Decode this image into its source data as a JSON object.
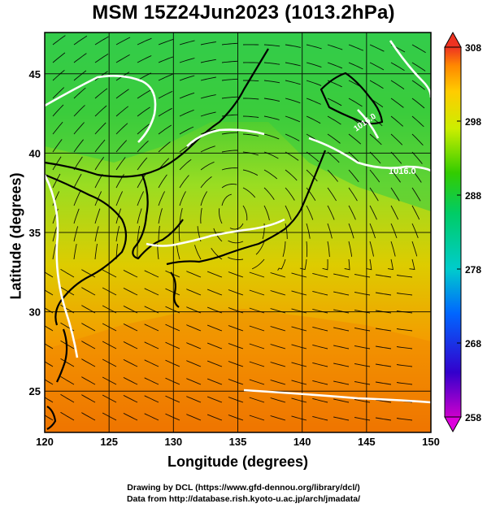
{
  "title": "MSM 15Z24Jun2023 (1013.2hPa)",
  "x_axis": {
    "label": "Longitude (degrees)",
    "ticks": [
      "120",
      "125",
      "130",
      "135",
      "140",
      "145",
      "150"
    ],
    "range": [
      120,
      150
    ]
  },
  "y_axis": {
    "label": "Latitude  (degrees)",
    "ticks": [
      "25",
      "30",
      "35",
      "40",
      "45"
    ],
    "range": [
      22.4,
      47.6
    ]
  },
  "colorbar": {
    "ticks": [
      "258",
      "268",
      "278",
      "288",
      "298",
      "308"
    ],
    "range": [
      258,
      308
    ],
    "colors": [
      "#cc00cc",
      "#3300cc",
      "#0066ff",
      "#00cccc",
      "#00cc66",
      "#33cc00",
      "#ccee00",
      "#ffcc00",
      "#ff8800",
      "#ee3322"
    ]
  },
  "isobar_labels": [
    "1016.0",
    "1016.0"
  ],
  "colors": {
    "warm": "#ee7700",
    "mid": "#ddcc00",
    "cool": "#22cc33",
    "isobar": "#ffffff",
    "coast": "#000000"
  },
  "credits": {
    "line1": "Drawing by DCL (https://www.gfd-dennou.org/library/dcl/)",
    "line2": "Data from http://database.rish.kyoto-u.ac.jp/arch/jmadata/"
  }
}
